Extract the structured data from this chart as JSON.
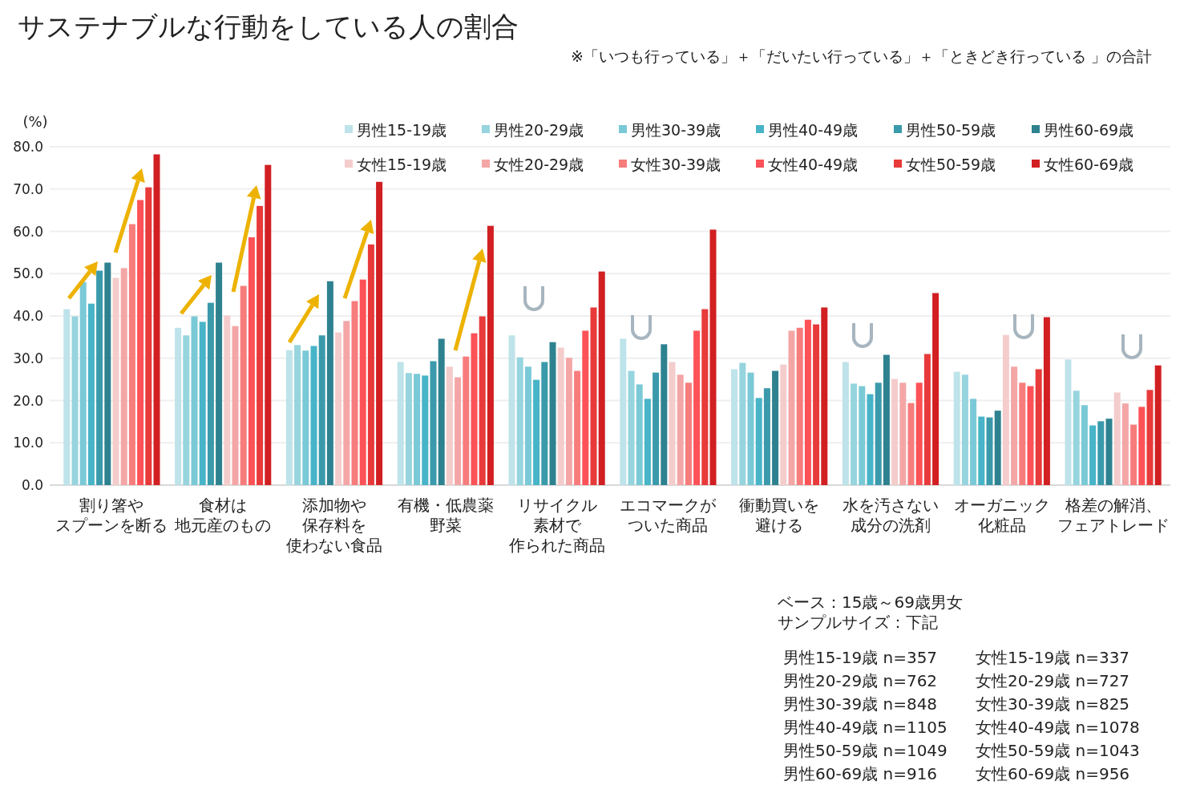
{
  "chart_data": {
    "type": "bar",
    "title": "サステナブルな行動をしている人の割合",
    "subtitle": "※「いつも行っている」＋「だいたい行っている」＋「ときどき行っている 」の合計",
    "ylabel": "(%)",
    "categories": [
      "割り箸やスプーンを断る",
      "食材は地元産のもの",
      "添加物や保存料を使わない食品",
      "有機・低農薬野菜",
      "リサイクル素材で作られた商品",
      "エコマークがついた商品",
      "衝動買いを避ける",
      "水を汚さない成分の洗剤",
      "オーガニック化粧品",
      "格差の解消、フェアトレード"
    ],
    "series": [
      {
        "name": "男性15-19歳",
        "color": "#bee3ea",
        "values": [
          41.6,
          37.2,
          31.9,
          29.1,
          35.4,
          34.6,
          27.4,
          29.1,
          26.8,
          29.7
        ]
      },
      {
        "name": "男性20-29歳",
        "color": "#96d4de",
        "values": [
          39.9,
          35.4,
          33.1,
          26.5,
          30.2,
          27.0,
          28.9,
          24.0,
          26.1,
          22.3
        ]
      },
      {
        "name": "男性30-39歳",
        "color": "#7ac9d6",
        "values": [
          48.0,
          39.9,
          31.8,
          26.3,
          28.0,
          23.8,
          26.6,
          23.4,
          20.4,
          18.9
        ]
      },
      {
        "name": "男性40-49歳",
        "color": "#47b4c8",
        "values": [
          42.9,
          38.6,
          32.9,
          25.9,
          24.9,
          20.4,
          20.6,
          21.5,
          16.2,
          14.1
        ]
      },
      {
        "name": "男性50-59歳",
        "color": "#3a9aab",
        "values": [
          50.7,
          43.1,
          35.4,
          29.3,
          29.1,
          26.6,
          22.9,
          24.2,
          16.0,
          15.1
        ]
      },
      {
        "name": "男性60-69歳",
        "color": "#2e8290",
        "values": [
          52.6,
          52.6,
          48.2,
          34.6,
          33.8,
          33.3,
          27.0,
          30.8,
          17.6,
          15.7
        ]
      },
      {
        "name": "女性15-19歳",
        "color": "#f4cccc",
        "values": [
          49.0,
          40.1,
          36.1,
          28.0,
          32.5,
          29.1,
          28.5,
          25.1,
          35.5,
          21.9
        ]
      },
      {
        "name": "女性20-29歳",
        "color": "#f4a6a6",
        "values": [
          51.3,
          37.6,
          38.8,
          25.5,
          30.1,
          26.1,
          36.5,
          24.2,
          28.0,
          19.3
        ]
      },
      {
        "name": "女性30-39歳",
        "color": "#f77c7c",
        "values": [
          61.7,
          47.1,
          43.5,
          30.4,
          27.0,
          24.2,
          37.2,
          19.4,
          24.2,
          14.3
        ]
      },
      {
        "name": "女性40-49歳",
        "color": "#fd5257",
        "values": [
          67.4,
          58.6,
          48.6,
          35.9,
          36.5,
          36.5,
          39.1,
          24.2,
          23.4,
          18.5
        ]
      },
      {
        "name": "女性50-59歳",
        "color": "#e83a3a",
        "values": [
          70.4,
          66.0,
          56.9,
          39.9,
          42.0,
          41.6,
          38.0,
          31.0,
          27.4,
          22.5
        ]
      },
      {
        "name": "女性60-69歳",
        "color": "#d11f22",
        "values": [
          78.2,
          75.7,
          71.7,
          61.3,
          50.5,
          60.4,
          42.0,
          45.4,
          39.7,
          28.3
        ]
      }
    ],
    "ylim": [
      0,
      80
    ],
    "yticks": [
      {
        "value": 0,
        "label": "0.0"
      },
      {
        "value": 10,
        "label": "10.0"
      },
      {
        "value": 20,
        "label": "20.0"
      },
      {
        "value": 30,
        "label": "30.0"
      },
      {
        "value": 40,
        "label": "40.0"
      },
      {
        "value": 50,
        "label": "50.0"
      },
      {
        "value": 60,
        "label": "60.0"
      },
      {
        "value": 70,
        "label": "70.0"
      },
      {
        "value": 80,
        "label": "80.0"
      }
    ],
    "grid": "y",
    "legend": "top",
    "annotations": [
      "ベース：15歳～69歳男女",
      "サンプルサイズ：下記",
      "男性15-19歳 n=357",
      "男性20-29歳 n=762",
      "男性30-39歳 n=848",
      "男性40-49歳 n=1105",
      "男性50-59歳 n=1049",
      "男性60-69歳 n=916",
      "女性15-19歳 n=337",
      "女性20-29歳 n=727",
      "女性30-39歳 n=825",
      "女性40-49歳 n=1078",
      "女性50-59歳 n=1043",
      "女性60-69歳 n=956"
    ]
  }
}
